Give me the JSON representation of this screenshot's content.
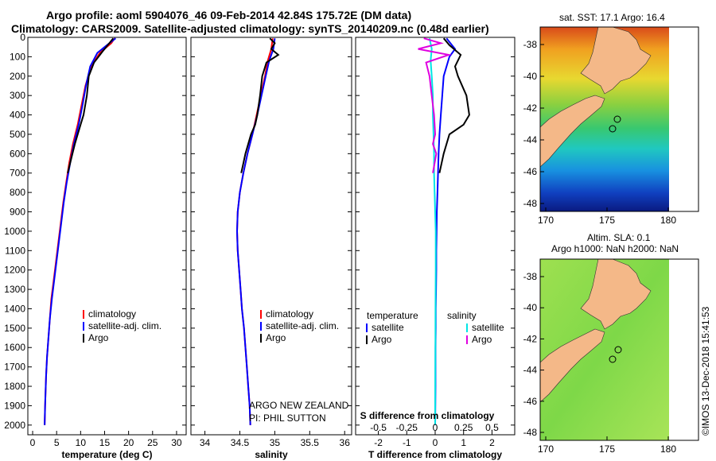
{
  "header": {
    "title_line1": "Argo profile: aoml 5904076_46 09-Feb-2014 42.84S 175.72E (DM data)",
    "title_line2": "Climatology: CARS2009. Satellite-adjusted climatology: synTS_20140209.nc (0.48d earlier)"
  },
  "map_panels": {
    "sst_title": "sat. SST: 17.1 Argo: 16.4",
    "sla_title_line1": "Altim. SLA: 0.1",
    "sla_title_line2": "Argo h1000: NaN h2000: NaN",
    "lat_ticks": [
      "-38",
      "-40",
      "-42",
      "-44",
      "-46",
      "-48"
    ],
    "lon_ticks": [
      "170",
      "175",
      "180"
    ]
  },
  "credit": "©IMOS 13-Dec-2018 15:41:53",
  "float_info": {
    "line1": "ARGO NEW ZEALAND",
    "line2": "PI: PHIL SUTTON"
  },
  "colors": {
    "climatology": "#ff0000",
    "satellite": "#0000ff",
    "argo": "#000000",
    "salinity_satellite": "#00e5e5",
    "salinity_argo": "#e000e0",
    "land": "#f4b888"
  },
  "chart_data": [
    {
      "type": "line",
      "xlabel": "temperature (deg C)",
      "ylabel": "",
      "xlim": [
        -1,
        32
      ],
      "ylim": [
        2050,
        0
      ],
      "xticks": [
        "0",
        "5",
        "10",
        "15",
        "20",
        "25",
        "30"
      ],
      "yticks": [
        "0",
        "100",
        "200",
        "300",
        "400",
        "500",
        "600",
        "700",
        "800",
        "900",
        "1000",
        "1100",
        "1200",
        "1300",
        "1400",
        "1500",
        "1600",
        "1700",
        "1800",
        "1900",
        "2000"
      ],
      "legend": [
        "climatology",
        "satellite-adj. clim.",
        "Argo"
      ],
      "legend_position": "lower-right",
      "series": [
        {
          "name": "climatology",
          "color": "#ff0000",
          "x": [
            17.1,
            16.4,
            14.0,
            12.2,
            11.0,
            10.2,
            9.4,
            8.4,
            7.6,
            7.0,
            6.4,
            5.9,
            5.4,
            4.9,
            4.4,
            3.9,
            3.6,
            3.3,
            3.0,
            2.8,
            2.6,
            2.5
          ],
          "y": [
            5,
            30,
            80,
            150,
            250,
            350,
            450,
            550,
            650,
            750,
            850,
            950,
            1050,
            1150,
            1250,
            1350,
            1450,
            1550,
            1650,
            1750,
            1900,
            2000
          ]
        },
        {
          "name": "satellite-adj. clim.",
          "color": "#0000ff",
          "x": [
            17.3,
            16.0,
            13.5,
            12.0,
            11.1,
            10.4,
            9.6,
            8.6,
            7.8,
            7.1,
            6.5,
            6.0,
            5.5,
            5.0,
            4.5,
            4.0,
            3.6,
            3.3,
            3.0,
            2.8,
            2.6,
            2.5
          ],
          "y": [
            5,
            30,
            80,
            150,
            250,
            350,
            450,
            550,
            650,
            750,
            850,
            950,
            1050,
            1150,
            1250,
            1350,
            1450,
            1550,
            1650,
            1750,
            1900,
            2000
          ]
        },
        {
          "name": "Argo",
          "color": "#000000",
          "x": [
            16.8,
            16.0,
            14.5,
            12.8,
            11.7,
            11.3,
            10.6,
            10.0,
            9.4,
            8.8,
            8.3,
            7.8,
            7.3
          ],
          "y": [
            5,
            30,
            75,
            130,
            200,
            300,
            400,
            450,
            500,
            550,
            600,
            650,
            700
          ]
        }
      ]
    },
    {
      "type": "line",
      "xlabel": "salinity",
      "ylabel": "",
      "xlim": [
        33.8,
        36.1
      ],
      "ylim": [
        2050,
        0
      ],
      "xticks": [
        "34",
        "34.5",
        "35",
        "35.5",
        "36"
      ],
      "legend": [
        "climatology",
        "satellite-adj. clim.",
        "Argo"
      ],
      "legend_position": "lower-right",
      "series": [
        {
          "name": "climatology",
          "color": "#ff0000",
          "x": [
            34.97,
            34.95,
            34.9,
            34.86,
            34.8,
            34.74,
            34.68,
            34.61,
            34.55,
            34.5,
            34.47,
            34.46,
            34.47,
            34.49,
            34.51,
            34.53,
            34.56,
            34.58,
            34.6,
            34.62,
            34.64,
            34.65
          ],
          "y": [
            5,
            60,
            120,
            200,
            300,
            400,
            500,
            600,
            700,
            800,
            900,
            1000,
            1100,
            1200,
            1300,
            1400,
            1500,
            1600,
            1700,
            1800,
            1900,
            2000
          ]
        },
        {
          "name": "satellite-adj. clim.",
          "color": "#0000ff",
          "x": [
            35.0,
            34.98,
            34.92,
            34.87,
            34.81,
            34.75,
            34.68,
            34.61,
            34.55,
            34.5,
            34.47,
            34.46,
            34.47,
            34.49,
            34.51,
            34.53,
            34.56,
            34.58,
            34.6,
            34.62,
            34.64,
            34.65
          ],
          "y": [
            5,
            60,
            120,
            200,
            300,
            400,
            500,
            600,
            700,
            800,
            900,
            1000,
            1100,
            1200,
            1300,
            1400,
            1500,
            1600,
            1700,
            1800,
            1900,
            2000
          ]
        },
        {
          "name": "Argo",
          "color": "#000000",
          "x": [
            34.93,
            35.0,
            34.95,
            35.05,
            34.88,
            34.82,
            34.79,
            34.75,
            34.72,
            34.66,
            34.62,
            34.58,
            34.55,
            34.52
          ],
          "y": [
            5,
            30,
            60,
            90,
            130,
            200,
            300,
            400,
            450,
            500,
            550,
            600,
            650,
            700
          ]
        }
      ]
    },
    {
      "type": "line",
      "xlabel": "T difference from climatology",
      "xlabel_secondary": "S difference from climatology",
      "xlim": [
        -2.8,
        2.8
      ],
      "ylim": [
        2050,
        0
      ],
      "xticks": [
        "-2",
        "-1",
        "0",
        "1",
        "2"
      ],
      "xticks_secondary": [
        "-0.5",
        "-0.25",
        "0",
        "0.25",
        "0.5"
      ],
      "legend_temperature_header": "temperature",
      "legend_salinity_header": "salinity",
      "legend_temperature": [
        "satellite",
        "Argo"
      ],
      "legend_salinity": [
        "satellite",
        "Argo"
      ],
      "series": [
        {
          "name": "temperature satellite",
          "color": "#0000ff",
          "x": [
            0.4,
            0.7,
            0.5,
            0.3,
            0.25,
            0.2,
            0.15,
            0.12,
            0.1,
            0.08,
            0.06,
            0.05,
            0.04,
            0.04,
            0.03,
            0.02,
            0.02,
            0.01,
            0.01,
            0.01,
            0.0
          ],
          "y": [
            5,
            60,
            100,
            200,
            300,
            400,
            500,
            600,
            700,
            800,
            900,
            1000,
            1100,
            1200,
            1300,
            1400,
            1500,
            1600,
            1700,
            1800,
            2000
          ]
        },
        {
          "name": "temperature Argo",
          "color": "#000000",
          "x": [
            0.3,
            0.5,
            0.9,
            0.7,
            0.8,
            1.1,
            1.2,
            1.0,
            0.5,
            0.3,
            0.15
          ],
          "y": [
            5,
            40,
            90,
            150,
            200,
            300,
            400,
            450,
            500,
            600,
            700
          ]
        },
        {
          "name": "salinity satellite",
          "color": "#00e5e5",
          "x": [
            -0.05,
            -0.03,
            -0.04,
            -0.03,
            -0.02,
            -0.02,
            -0.015,
            -0.01,
            -0.01,
            -0.005,
            0.0,
            0.005,
            0.005,
            0.003,
            0.002,
            0.001,
            0.0
          ],
          "y": [
            5,
            60,
            120,
            200,
            300,
            400,
            500,
            600,
            700,
            800,
            900,
            1000,
            1200,
            1400,
            1600,
            1800,
            2000
          ]
        },
        {
          "name": "salinity Argo",
          "color": "#e000e0",
          "x": [
            -0.1,
            0.05,
            -0.15,
            0.12,
            -0.08,
            -0.05,
            -0.03,
            -0.01,
            0.0,
            -0.02,
            0.01,
            -0.02
          ],
          "y": [
            5,
            30,
            60,
            90,
            130,
            200,
            300,
            400,
            500,
            550,
            600,
            700
          ]
        }
      ]
    }
  ]
}
